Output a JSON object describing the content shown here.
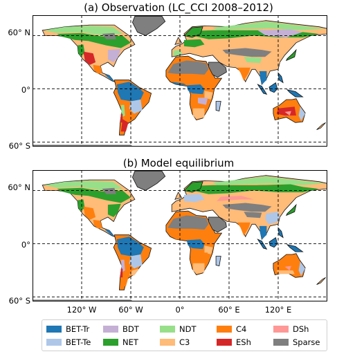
{
  "panels": [
    {
      "title": "(a) Observation (LC_CCI 2008–2012)",
      "variant": "obs"
    },
    {
      "title": "(b) Model equilibrium",
      "variant": "model"
    }
  ],
  "axes": {
    "lat_ticks": [
      "60° N",
      "0°",
      "60° S"
    ],
    "lon_ticks": [
      "120° W",
      "60° W",
      "0°",
      "60° E",
      "120° E"
    ]
  },
  "legend": [
    {
      "key": "BET-Tr",
      "label": "BET-Tr",
      "color": "#1f77b4"
    },
    {
      "key": "BET-Te",
      "label": "BET-Te",
      "color": "#aec7e8"
    },
    {
      "key": "BDT",
      "label": "BDT",
      "color": "#c5b0d5"
    },
    {
      "key": "NET",
      "label": "NET",
      "color": "#2ca02c"
    },
    {
      "key": "NDT",
      "label": "NDT",
      "color": "#98df8a"
    },
    {
      "key": "C3",
      "label": "C3",
      "color": "#ffbb78"
    },
    {
      "key": "C4",
      "label": "C4",
      "color": "#ff7f0e"
    },
    {
      "key": "ESh",
      "label": "ESh",
      "color": "#d62728"
    },
    {
      "key": "DSh",
      "label": "DSh",
      "color": "#ff9896"
    },
    {
      "key": "Sparse",
      "label": "Sparse",
      "color": "#7f7f7f"
    }
  ]
}
